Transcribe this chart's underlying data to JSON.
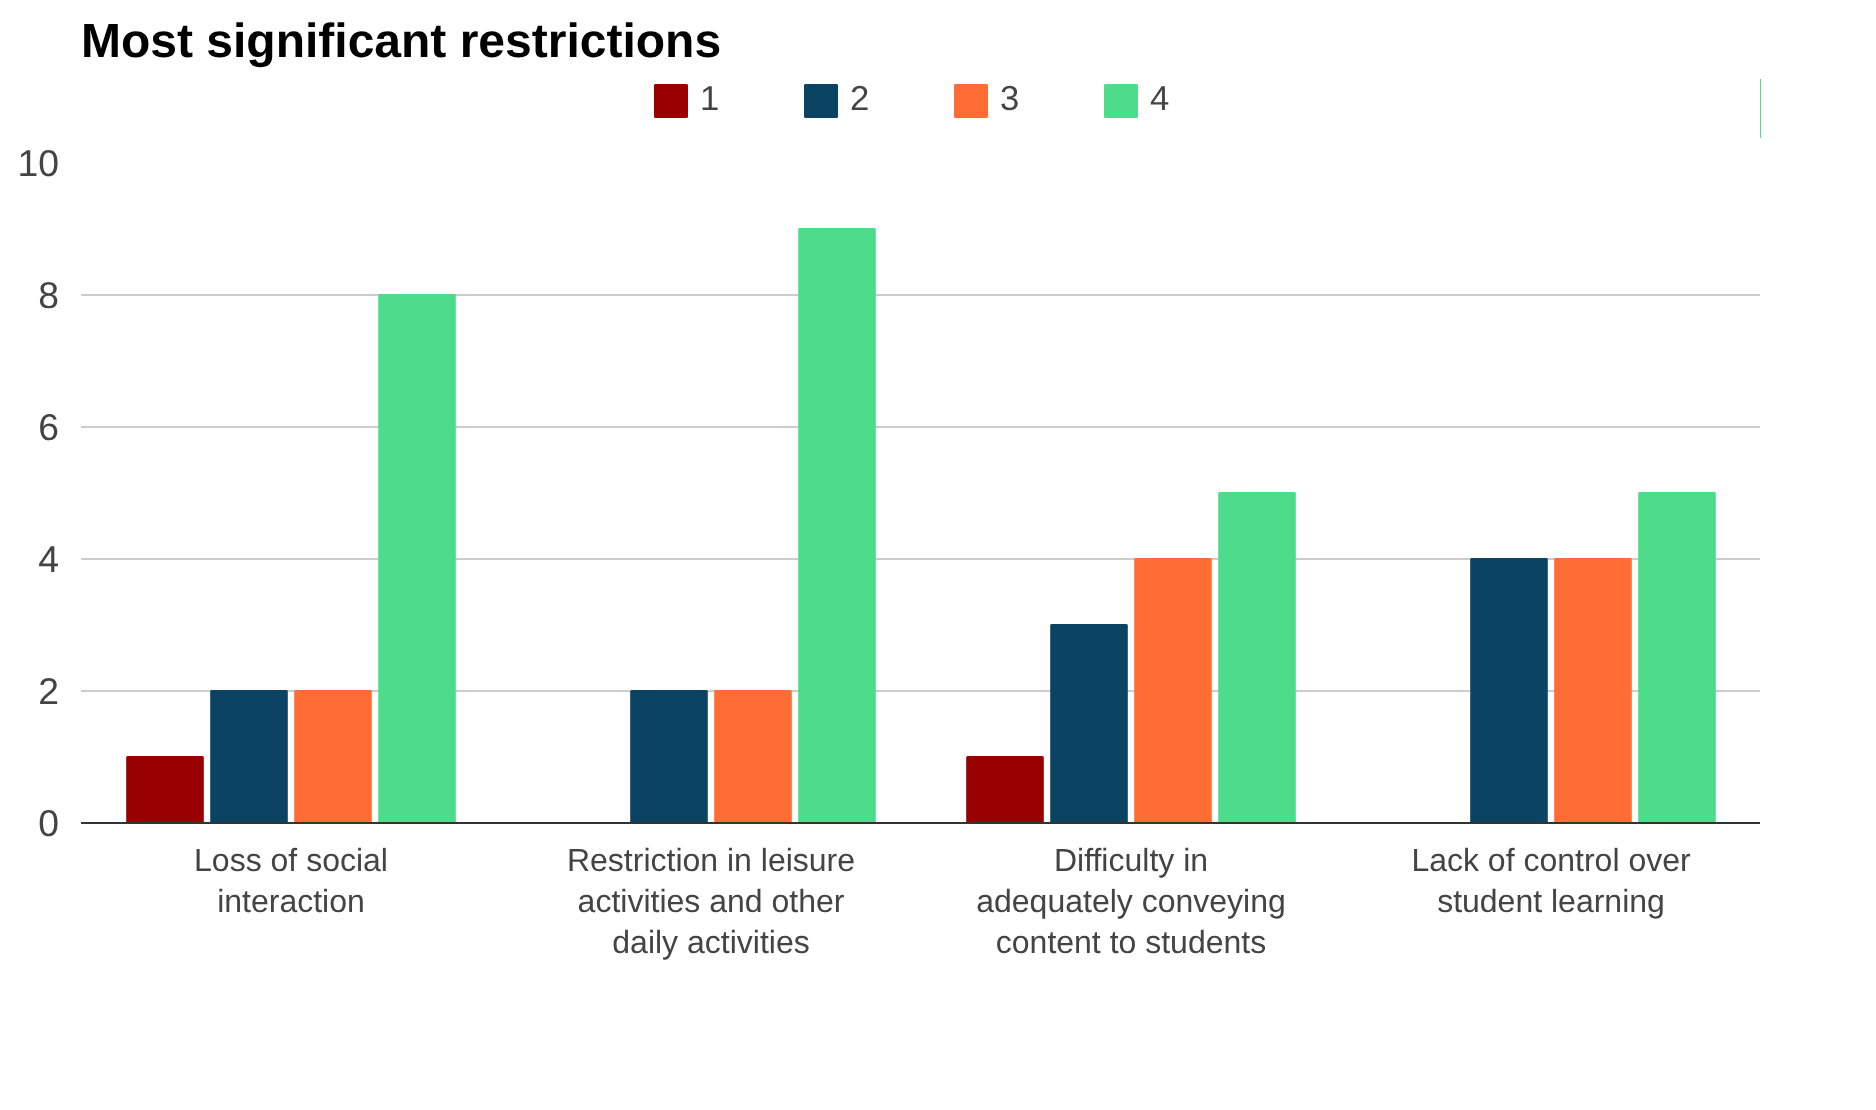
{
  "chart_data": {
    "type": "bar",
    "title": "Most significant restrictions",
    "categories": [
      "Loss of social interaction",
      "Restriction in leisure activities and other daily activities",
      "Difficulty in adequately conveying content to students",
      "Lack of control over student learning"
    ],
    "series": [
      {
        "name": "1",
        "color": "#980000",
        "values": [
          1,
          0,
          1,
          0
        ]
      },
      {
        "name": "2",
        "color": "#0b4462",
        "values": [
          2,
          2,
          3,
          4
        ]
      },
      {
        "name": "3",
        "color": "#ff6d34",
        "values": [
          2,
          2,
          4,
          4
        ]
      },
      {
        "name": "4",
        "color": "#4ddc8a",
        "values": [
          8,
          9,
          5,
          5
        ]
      }
    ],
    "ylim": [
      0,
      10
    ],
    "yticks": [
      0,
      2,
      4,
      6,
      8,
      10
    ],
    "grid": "y",
    "legend": "top"
  }
}
